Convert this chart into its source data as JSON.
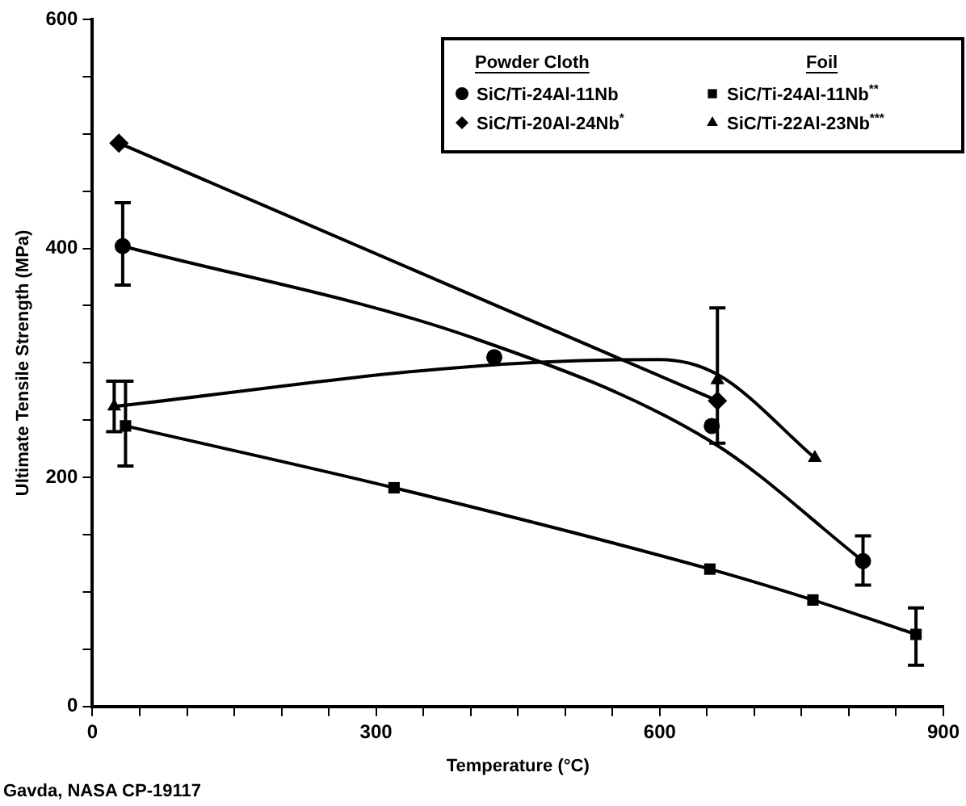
{
  "chart_data": {
    "type": "line",
    "xlabel": "Temperature (°C)",
    "ylabel": "Ultimate Tensile Strength (MPa)",
    "xlim": [
      0,
      900
    ],
    "ylim": [
      0,
      600
    ],
    "xticks": [
      0,
      {
        "value": 50,
        "label": null
      },
      {
        "value": 100,
        "label": null
      },
      {
        "value": 150,
        "label": null
      },
      {
        "value": 200,
        "label": null
      },
      {
        "value": 250,
        "label": null
      },
      300,
      {
        "value": 350,
        "label": null
      },
      {
        "value": 400,
        "label": null
      },
      {
        "value": 450,
        "label": null
      },
      {
        "value": 500,
        "label": null
      },
      {
        "value": 550,
        "label": null
      },
      600,
      {
        "value": 650,
        "label": null
      },
      {
        "value": 700,
        "label": null
      },
      {
        "value": 750,
        "label": null
      },
      {
        "value": 800,
        "label": null
      },
      {
        "value": 850,
        "label": null
      },
      900
    ],
    "yticks": [
      0,
      {
        "value": 50,
        "label": null
      },
      {
        "value": 100,
        "label": null
      },
      {
        "value": 150,
        "label": null
      },
      200,
      {
        "value": 250,
        "label": null
      },
      {
        "value": 300,
        "label": null
      },
      {
        "value": 350,
        "label": null
      },
      400,
      {
        "value": 450,
        "label": null
      },
      {
        "value": 500,
        "label": null
      },
      {
        "value": 550,
        "label": null
      },
      600
    ],
    "grid": false,
    "legend": "top right",
    "annotations": [
      "Powder Cloth",
      "Foil",
      "Gavda, NASA CP-19117"
    ],
    "series": [
      {
        "name": "SiC/Ti-24Al-11Nb",
        "type": "scatter",
        "marker": "circle",
        "color": "#000000",
        "x": [
          32,
          425,
          655,
          815
        ],
        "values": [
          402,
          305,
          245,
          127
        ],
        "errors": [
          [
            368,
            440
          ],
          null,
          null,
          [
            106,
            149
          ]
        ]
      },
      {
        "name": "SiC/Ti-20Al-24Nb$^{*}$",
        "marker": "diamond",
        "color": "#000000",
        "x": [
          28,
          661
        ],
        "values": [
          492,
          267
        ]
      },
      {
        "name": "SiC/Ti-24Al-11Nb$^{**}$",
        "marker": "square",
        "color": "#000000",
        "x": [
          35,
          319,
          653,
          762,
          871
        ],
        "values": [
          245,
          191,
          120,
          93,
          63
        ],
        "errors": [
          [
            210,
            284
          ],
          null,
          null,
          null,
          [
            36,
            86
          ]
        ]
      },
      {
        "name": "SiC/Ti-22Al-23Nb$^{***}$",
        "type": "scatter",
        "marker": "triangle",
        "color": "#000000",
        "x": [
          23,
          661,
          764
        ],
        "values": [
          262,
          285,
          217
        ],
        "errors": [
          [
            240,
            284
          ],
          [
            230,
            348
          ],
          null
        ]
      },
      {
        "marker": "none",
        "color": "#000000",
        "x": [
          32,
          402,
          655,
          815
        ],
        "values": [
          402,
          322,
          231,
          127
        ]
      },
      {
        "marker": "none",
        "color": "#000000",
        "x": [
          23,
          402,
          600,
          661,
          764
        ],
        "values": [
          262,
          297,
          303,
          290,
          217
        ]
      }
    ]
  }
}
